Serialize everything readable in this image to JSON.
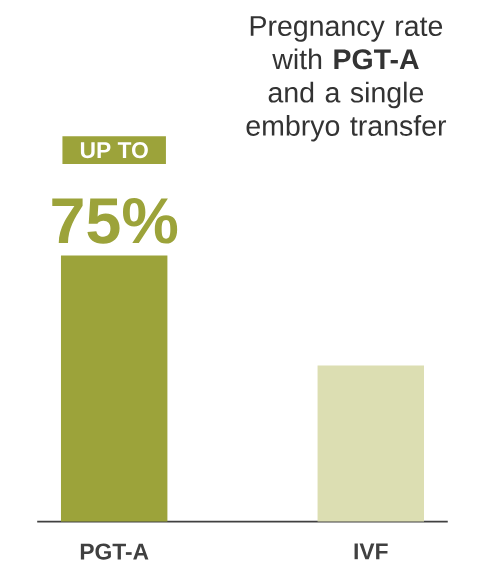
{
  "chart_data": {
    "type": "bar",
    "title": "Pregnancy rate with **PGT-A** and a single embryo transfer",
    "categories": [
      "PGT-A",
      "IVF"
    ],
    "values": [
      75,
      44
    ],
    "colors": [
      "#9ca33a",
      "#dcdeb2"
    ],
    "value_labels": [
      "75%",
      null
    ],
    "annotations": [
      "UP TO"
    ]
  }
}
